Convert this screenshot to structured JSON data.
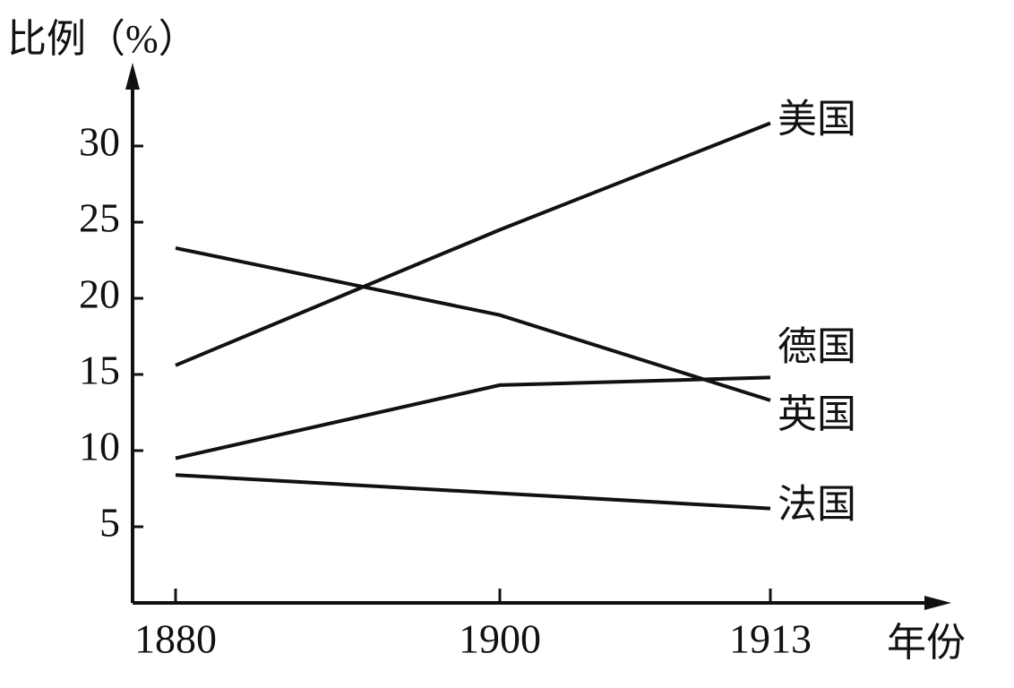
{
  "chart_data": {
    "type": "line",
    "y_label": "比例（%）",
    "x_label": "年份",
    "categories": [
      "1880",
      "1900",
      "1913"
    ],
    "series": [
      {
        "name": "美国",
        "color": "#111111",
        "values": [
          15.6,
          24.5,
          31.5
        ]
      },
      {
        "name": "德国",
        "color": "#111111",
        "values": [
          9.5,
          14.3,
          14.8
        ]
      },
      {
        "name": "英国",
        "color": "#111111",
        "values": [
          23.3,
          18.9,
          13.3
        ]
      },
      {
        "name": "法国",
        "color": "#111111",
        "values": [
          8.4,
          7.2,
          6.2
        ]
      }
    ],
    "ylim": [
      0,
      35
    ],
    "yticks": [
      5,
      10,
      15,
      20,
      25,
      30
    ]
  }
}
